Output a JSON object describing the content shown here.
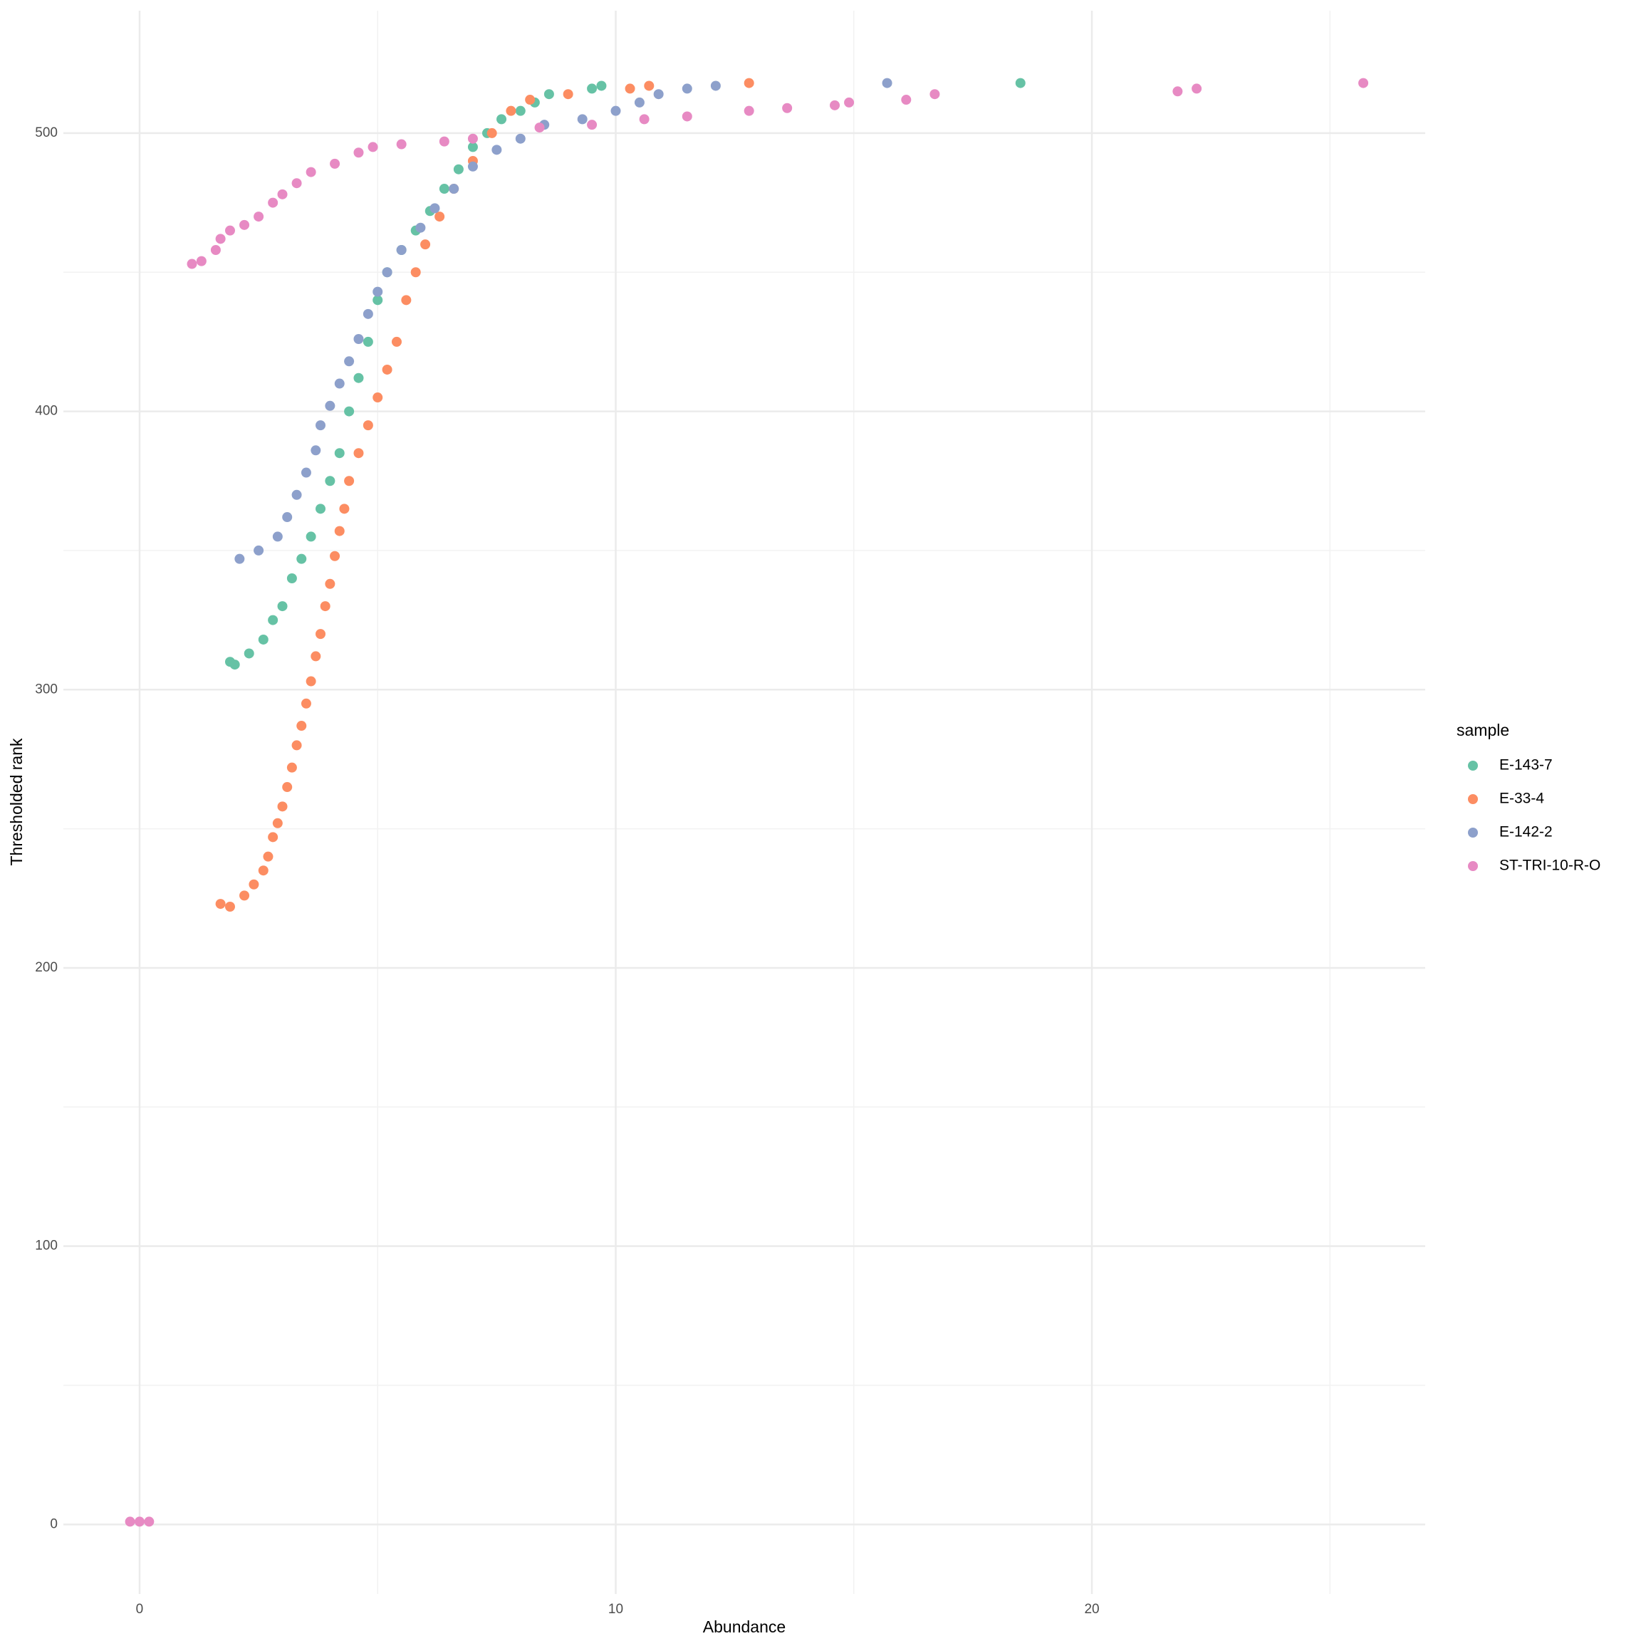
{
  "chart_data": {
    "type": "scatter",
    "x_label": "Abundance",
    "y_label": "Thresholded rank",
    "legend_title": "sample",
    "xlim": [
      -1.6,
      27
    ],
    "ylim": [
      -25,
      544
    ],
    "xticks": [
      0,
      10,
      20
    ],
    "yticks": [
      0,
      100,
      200,
      300,
      400,
      500
    ],
    "x_minor_grid": [
      5,
      15,
      25
    ],
    "y_minor_grid": [
      50,
      150,
      250,
      350,
      450
    ],
    "grid": true,
    "legend": "right",
    "series": [
      {
        "name": "E-143-7",
        "color": "#66c2a5",
        "x": [
          1.9,
          2.0,
          2.3,
          2.6,
          2.8,
          3.0,
          3.2,
          3.4,
          3.6,
          3.8,
          4.0,
          4.2,
          4.4,
          4.6,
          4.8,
          5.0,
          5.2,
          5.5,
          5.8,
          6.1,
          6.4,
          6.7,
          7.0,
          7.3,
          7.6,
          8.0,
          8.3,
          8.6,
          9.5,
          9.7,
          18.5
        ],
        "values": [
          310,
          309,
          313,
          318,
          325,
          330,
          340,
          347,
          355,
          365,
          375,
          385,
          400,
          412,
          425,
          440,
          450,
          458,
          465,
          472,
          480,
          487,
          495,
          500,
          505,
          508,
          511,
          514,
          516,
          517,
          518
        ]
      },
      {
        "name": "E-33-4",
        "color": "#fc8d62",
        "x": [
          1.7,
          1.9,
          2.2,
          2.4,
          2.6,
          2.7,
          2.8,
          2.9,
          3.0,
          3.1,
          3.2,
          3.3,
          3.4,
          3.5,
          3.6,
          3.7,
          3.8,
          3.9,
          4.0,
          4.1,
          4.2,
          4.3,
          4.4,
          4.6,
          4.8,
          5.0,
          5.2,
          5.4,
          5.6,
          5.8,
          6.0,
          6.3,
          6.6,
          7.0,
          7.4,
          7.8,
          8.2,
          9.0,
          10.3,
          10.7,
          12.8
        ],
        "values": [
          223,
          222,
          226,
          230,
          235,
          240,
          247,
          252,
          258,
          265,
          272,
          280,
          287,
          295,
          303,
          312,
          320,
          330,
          338,
          348,
          357,
          365,
          375,
          385,
          395,
          405,
          415,
          425,
          440,
          450,
          460,
          470,
          480,
          490,
          500,
          508,
          512,
          514,
          516,
          517,
          518
        ]
      },
      {
        "name": "E-142-2",
        "color": "#8da0cb",
        "x": [
          2.1,
          2.5,
          2.9,
          3.1,
          3.3,
          3.5,
          3.7,
          3.8,
          4.0,
          4.2,
          4.4,
          4.6,
          4.8,
          5.0,
          5.2,
          5.5,
          5.9,
          6.2,
          6.6,
          7.0,
          7.5,
          8.0,
          8.5,
          9.3,
          10.0,
          10.5,
          10.9,
          11.5,
          12.1,
          15.7
        ],
        "values": [
          347,
          350,
          355,
          362,
          370,
          378,
          386,
          395,
          402,
          410,
          418,
          426,
          435,
          443,
          450,
          458,
          466,
          473,
          480,
          488,
          494,
          498,
          503,
          505,
          508,
          511,
          514,
          516,
          517,
          518
        ]
      },
      {
        "name": "ST-TRI-10-R-O",
        "color": "#e78ac3",
        "x": [
          -0.2,
          0,
          0.2,
          1.1,
          1.3,
          1.6,
          1.7,
          1.9,
          2.2,
          2.5,
          2.8,
          3.0,
          3.3,
          3.6,
          4.1,
          4.6,
          4.9,
          5.5,
          6.4,
          7.0,
          8.4,
          9.5,
          10.6,
          11.5,
          12.8,
          13.6,
          14.6,
          14.9,
          16.1,
          16.7,
          21.8,
          22.2,
          25.7
        ],
        "values": [
          1,
          1,
          1,
          453,
          454,
          458,
          462,
          465,
          467,
          470,
          475,
          478,
          482,
          486,
          489,
          493,
          495,
          496,
          497,
          498,
          502,
          503,
          505,
          506,
          508,
          509,
          510,
          511,
          512,
          514,
          515,
          516,
          518
        ]
      }
    ]
  }
}
